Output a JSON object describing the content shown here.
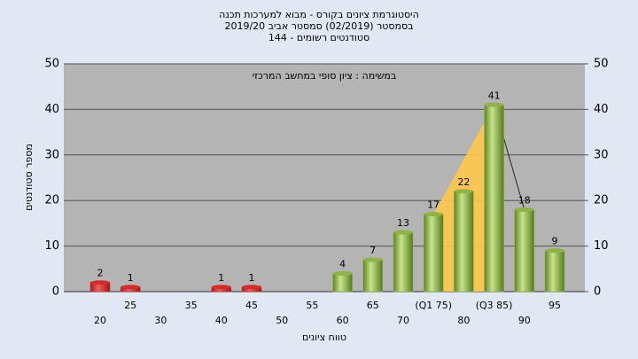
{
  "chart_data": {
    "type": "bar",
    "title_lines": [
      "היסטוגרמת ציונים בקורס - מבוא למערכות תכנה",
      "בסמסטר  (02/2019)  סמסטר אביב 2019/20",
      "סטודנטים רשומים - 144"
    ],
    "annotation": "במשימה : ציון סופי במחשב המרכזי",
    "x_label": "טווח ציונים",
    "y_label": "מספר סטודנטים",
    "categories": [
      "20",
      "25",
      "30",
      "35",
      "40",
      "45",
      "50",
      "55",
      "60",
      "65",
      "70",
      "(Q1 75)",
      "80",
      "(Q3 85)",
      "90",
      "95"
    ],
    "values": [
      2,
      1,
      0,
      0,
      1,
      1,
      0,
      0,
      4,
      7,
      13,
      17,
      22,
      41,
      18,
      9
    ],
    "colors": [
      "#d42b2b",
      "#d42b2b",
      "#d42b2b",
      "#d42b2b",
      "#d42b2b",
      "#d42b2b",
      "#d42b2b",
      "#d42b2b",
      "#8fb344",
      "#8fb344",
      "#8fb344",
      "#8fb344",
      "#8fb344",
      "#8fb344",
      "#8fb344",
      "#8fb344"
    ],
    "quartile_color": "#ffc84a",
    "ylim": [
      0,
      50
    ],
    "yticks": [
      0,
      10,
      20,
      30,
      40,
      50
    ],
    "y2lim": [
      0,
      50
    ],
    "y2ticks": [
      0,
      10,
      20,
      30,
      40,
      50
    ],
    "grid": true
  }
}
